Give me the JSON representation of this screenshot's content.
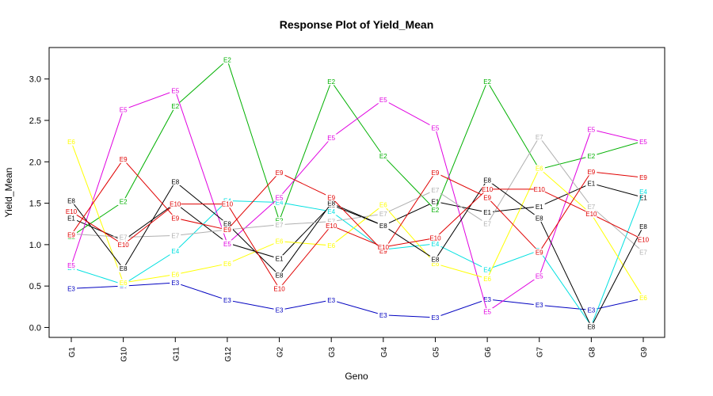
{
  "chart_data": {
    "type": "line",
    "title": "Response Plot of Yield_Mean",
    "xlabel": "Geno",
    "ylabel": "Yield_Mean",
    "categories": [
      "G1",
      "G10",
      "G11",
      "G12",
      "G2",
      "G3",
      "G4",
      "G5",
      "G6",
      "G7",
      "G8",
      "G9"
    ],
    "ylim": [
      -0.12,
      3.38
    ],
    "yticks": [
      0.0,
      0.5,
      1.0,
      1.5,
      2.0,
      2.5,
      3.0
    ],
    "ytick_labels": [
      "0.0",
      "0.5",
      "1.0",
      "1.5",
      "2.0",
      "2.5",
      "3.0"
    ],
    "grid": false,
    "legend": "none",
    "series": [
      {
        "name": "E1",
        "color": "#000000",
        "values": [
          1.32,
          1.05,
          1.5,
          1.02,
          0.83,
          1.48,
          1.23,
          1.52,
          1.39,
          1.46,
          1.74,
          1.57
        ]
      },
      {
        "name": "E2",
        "color": "#00b000",
        "values": [
          1.1,
          1.52,
          2.67,
          3.23,
          1.29,
          2.97,
          2.07,
          1.42,
          2.97,
          1.91,
          2.07,
          2.25
        ]
      },
      {
        "name": "E3",
        "color": "#0000c0",
        "values": [
          0.47,
          0.5,
          0.54,
          0.33,
          0.21,
          0.33,
          0.15,
          0.12,
          0.34,
          0.27,
          0.21,
          0.35
        ]
      },
      {
        "name": "E4",
        "color": "#00e0e0",
        "values": [
          0.72,
          0.52,
          0.92,
          1.53,
          1.51,
          1.4,
          0.94,
          1.01,
          0.7,
          0.93,
          0.02,
          1.64
        ]
      },
      {
        "name": "E5",
        "color": "#e000e0",
        "values": [
          0.75,
          2.63,
          2.86,
          1.01,
          1.57,
          2.29,
          2.75,
          2.41,
          0.19,
          0.62,
          2.39,
          2.24
        ]
      },
      {
        "name": "E6",
        "color": "#ffff00",
        "values": [
          2.24,
          0.54,
          0.64,
          0.77,
          1.04,
          0.99,
          1.48,
          0.77,
          0.59,
          1.92,
          1.37,
          0.36
        ]
      },
      {
        "name": "E7",
        "color": "#b0b0b0",
        "values": [
          1.13,
          1.09,
          1.11,
          1.18,
          1.24,
          1.28,
          1.37,
          1.66,
          1.25,
          2.3,
          1.46,
          0.91
        ]
      },
      {
        "name": "E8",
        "color": "#000000",
        "values": [
          1.53,
          0.71,
          1.76,
          1.25,
          0.63,
          1.5,
          1.23,
          0.82,
          1.78,
          1.32,
          0.01,
          1.22
        ]
      },
      {
        "name": "E9",
        "color": "#e00000",
        "values": [
          1.12,
          2.03,
          1.32,
          1.18,
          1.87,
          1.57,
          0.92,
          1.87,
          1.57,
          0.91,
          1.88,
          1.81
        ]
      },
      {
        "name": "E10",
        "color": "#e00000",
        "values": [
          1.4,
          1.0,
          1.49,
          1.49,
          0.47,
          1.23,
          0.97,
          1.08,
          1.67,
          1.67,
          1.37,
          1.06
        ]
      }
    ]
  }
}
